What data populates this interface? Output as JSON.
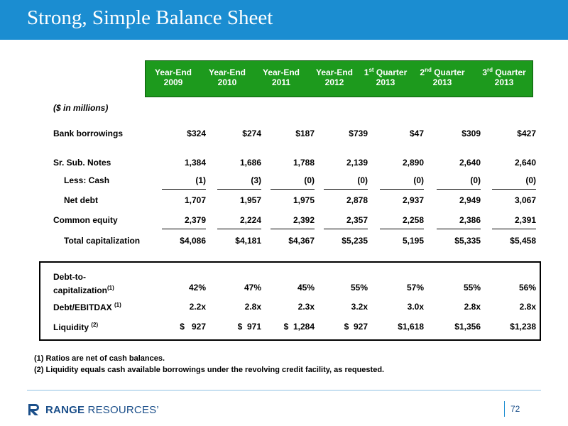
{
  "slide": {
    "title": "Strong, Simple Balance Sheet",
    "page_number": "72"
  },
  "table": {
    "columns": [
      {
        "line1": "Year-End",
        "line2": "2009"
      },
      {
        "line1": "Year-End",
        "line2": "2010"
      },
      {
        "line1": "Year-End",
        "line2": "2011"
      },
      {
        "line1": "Year-End",
        "line2": "2012"
      },
      {
        "line1_pre": "1",
        "line1_sup": "st",
        "line1_post": " Quarter",
        "line2": "2013"
      },
      {
        "line1_pre": "2",
        "line1_sup": "nd",
        "line1_post": " Quarter",
        "line2": "2013"
      },
      {
        "line1_pre": "3",
        "line1_sup": "rd",
        "line1_post": " Quarter",
        "line2": "2013"
      }
    ],
    "units": "($ in millions)",
    "rows": [
      {
        "label": "Bank borrowings",
        "values": [
          "$324",
          "$274",
          "$187",
          "$739",
          "$47",
          "$309",
          "$427"
        ]
      },
      {
        "label": "Sr. Sub. Notes",
        "values": [
          "1,384",
          "1,686",
          "1,788",
          "2,139",
          "2,890",
          "2,640",
          "2,640"
        ]
      },
      {
        "label": "Less: Cash",
        "values": [
          "(1)",
          "(3)",
          "(0)",
          "(0)",
          "(0)",
          "(0)",
          "(0)"
        ]
      },
      {
        "label": "Net debt",
        "values": [
          "1,707",
          "1,957",
          "1,975",
          "2,878",
          "2,937",
          "2,949",
          "3,067"
        ]
      },
      {
        "label": "Common equity",
        "values": [
          "2,379",
          "2,224",
          "2,392",
          "2,357",
          "2,258",
          "2,386",
          "2,391"
        ]
      },
      {
        "label": "Total capitalization",
        "values": [
          "$4,086",
          "$4,181",
          "$4,367",
          "$5,235",
          "5,195",
          "$5,335",
          "$5,458"
        ]
      }
    ],
    "ratios": [
      {
        "label_line1": "Debt-to-",
        "label_line2": "capitalization",
        "label_sup": "(1)",
        "values": [
          "42%",
          "47%",
          "45%",
          "55%",
          "57%",
          "55%",
          "56%"
        ]
      },
      {
        "label": "Debt/EBITDAX",
        "label_sup": "(1)",
        "values": [
          "2.2x",
          "2.8x",
          "2.3x",
          "3.2x",
          "3.0x",
          "2.8x",
          "2.8x"
        ]
      },
      {
        "label": "Liquidity",
        "label_sup": "(2)",
        "values": [
          "$   927",
          "$  971",
          "$  1,284",
          "$  927",
          "$1,618",
          "$1,356",
          "$1,238"
        ]
      }
    ]
  },
  "footnotes": [
    "(1)  Ratios are net of cash balances.",
    "(2)  Liquidity equals cash available borrowings under the revolving credit facility, as requested."
  ],
  "logo": {
    "bold_part": "RANGE",
    "light_part": " RESOURCES",
    "mark": "’"
  },
  "colors": {
    "title_bar": "#1b8dd1",
    "header_green": "#1d9a1d",
    "logo_blue": "#1b4f8a"
  }
}
